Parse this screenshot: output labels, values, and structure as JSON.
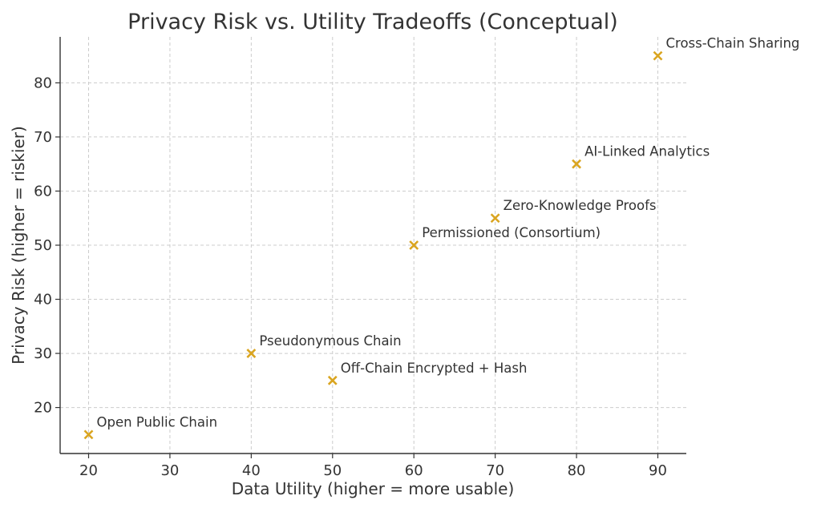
{
  "chart_data": {
    "type": "scatter",
    "title": "Privacy Risk vs. Utility Tradeoffs (Conceptual)",
    "xlabel": "Data Utility (higher = more usable)",
    "ylabel": "Privacy Risk (higher = riskier)",
    "xlim": [
      16.5,
      93.5
    ],
    "ylim": [
      11.5,
      88.5
    ],
    "xticks": [
      20,
      30,
      40,
      50,
      60,
      70,
      80,
      90
    ],
    "yticks": [
      20,
      30,
      40,
      50,
      60,
      70,
      80
    ],
    "grid": true,
    "marker": "x",
    "marker_color": "#DAA520",
    "points": [
      {
        "label": "Open Public Chain",
        "x": 20,
        "y": 15
      },
      {
        "label": "Pseudonymous Chain",
        "x": 40,
        "y": 30
      },
      {
        "label": "Off-Chain Encrypted + Hash",
        "x": 50,
        "y": 25
      },
      {
        "label": "Permissioned (Consortium)",
        "x": 60,
        "y": 50
      },
      {
        "label": "Zero-Knowledge Proofs",
        "x": 70,
        "y": 55
      },
      {
        "label": "AI-Linked Analytics",
        "x": 80,
        "y": 65
      },
      {
        "label": "Cross-Chain Sharing",
        "x": 90,
        "y": 85
      }
    ]
  }
}
